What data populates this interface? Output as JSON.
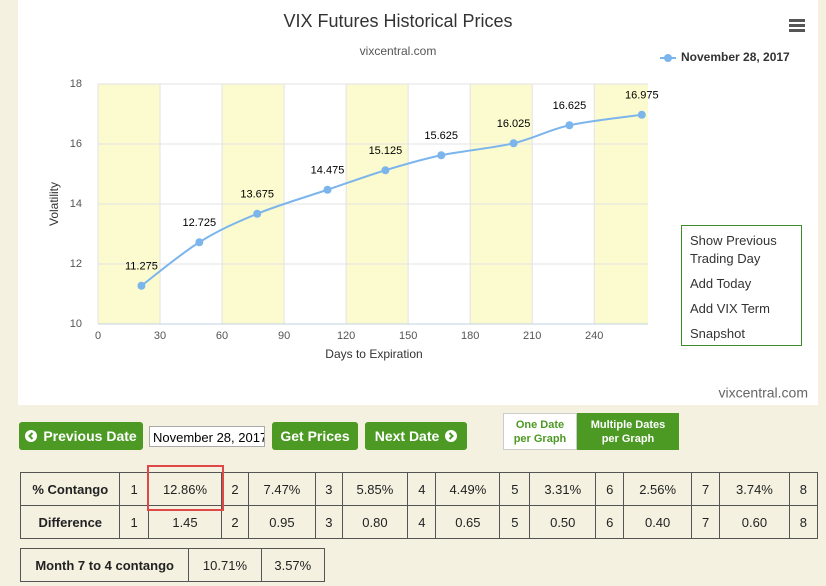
{
  "chart_data": {
    "type": "line",
    "title": "VIX Futures Historical Prices",
    "subtitle": "vixcentral.com",
    "x_label": "Days to Expiration",
    "y_label": "Volatility",
    "credit": "vixcentral.com",
    "xlim": [
      0,
      266
    ],
    "ylim": [
      10,
      18
    ],
    "xticks": [
      0,
      30,
      60,
      90,
      120,
      150,
      180,
      210,
      240
    ],
    "yticks": [
      10,
      12,
      14,
      16,
      18
    ],
    "grid": true,
    "legend": "top-right",
    "band_color": "#fbfbcf",
    "x": [
      21,
      49,
      77,
      111,
      139,
      166,
      201,
      228,
      263
    ],
    "series": [
      {
        "name": "November 28, 2017",
        "color": "#7cb5ec",
        "values": [
          11.275,
          12.725,
          13.675,
          14.475,
          15.125,
          15.625,
          16.025,
          16.625,
          16.975
        ]
      }
    ]
  },
  "menu": {
    "items": [
      "Show Previous Trading Day",
      "Add Today",
      "Add VIX Term",
      "Snapshot"
    ]
  },
  "controls": {
    "previous": "Previous Date",
    "date": "November 28, 2017",
    "get": "Get Prices",
    "next": "Next Date",
    "one": "One Date per Graph",
    "multiple": "Multiple Dates per Graph"
  },
  "contango_table": {
    "rows": [
      [
        "% Contango",
        "1",
        "12.86%",
        "2",
        "7.47%",
        "3",
        "5.85%",
        "4",
        "4.49%",
        "5",
        "3.31%",
        "6",
        "2.56%",
        "7",
        "3.74%",
        "8"
      ],
      [
        "Difference",
        "1",
        "1.45",
        "2",
        "0.95",
        "3",
        "0.80",
        "4",
        "0.65",
        "5",
        "0.50",
        "6",
        "0.40",
        "7",
        "0.60",
        "8"
      ]
    ]
  },
  "month_table": {
    "rows": [
      [
        "Month 7 to 4 contango",
        "10.71%",
        "3.57%"
      ]
    ]
  }
}
